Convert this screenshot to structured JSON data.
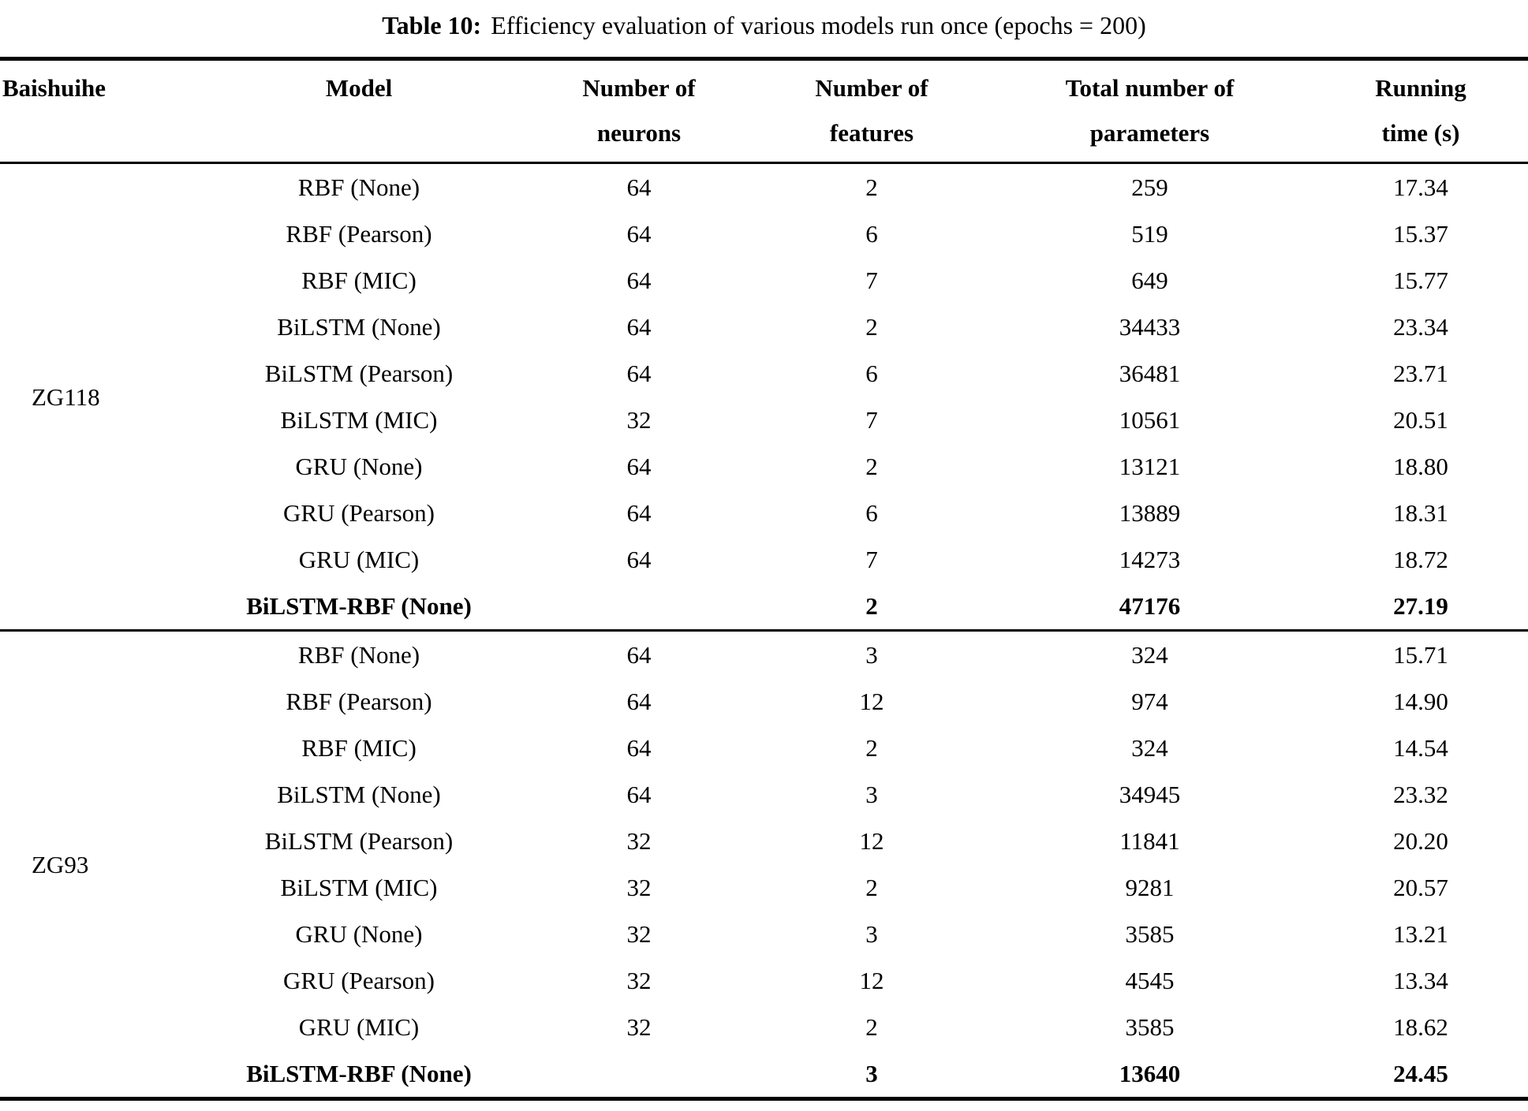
{
  "colors": {
    "text": "#000000",
    "background": "#ffffff"
  },
  "caption": {
    "label": "Table 10:",
    "text": "Efficiency evaluation of various models run once (epochs = 200)"
  },
  "table": {
    "headers": [
      {
        "lines": [
          "Baishuihe"
        ]
      },
      {
        "lines": [
          "Model"
        ]
      },
      {
        "lines": [
          "Number of",
          "neurons"
        ]
      },
      {
        "lines": [
          "Number of",
          "features"
        ]
      },
      {
        "lines": [
          "Total number of",
          "parameters"
        ]
      },
      {
        "lines": [
          "Running",
          "time (s)"
        ]
      }
    ],
    "groups": [
      {
        "label": "ZG118",
        "rows": [
          {
            "model": "RBF (None)",
            "neurons": "64",
            "features": "2",
            "parameters": "259",
            "time": "17.34",
            "bold": false
          },
          {
            "model": "RBF (Pearson)",
            "neurons": "64",
            "features": "6",
            "parameters": "519",
            "time": "15.37",
            "bold": false
          },
          {
            "model": "RBF (MIC)",
            "neurons": "64",
            "features": "7",
            "parameters": "649",
            "time": "15.77",
            "bold": false
          },
          {
            "model": "BiLSTM (None)",
            "neurons": "64",
            "features": "2",
            "parameters": "34433",
            "time": "23.34",
            "bold": false
          },
          {
            "model": "BiLSTM (Pearson)",
            "neurons": "64",
            "features": "6",
            "parameters": "36481",
            "time": "23.71",
            "bold": false
          },
          {
            "model": "BiLSTM (MIC)",
            "neurons": "32",
            "features": "7",
            "parameters": "10561",
            "time": "20.51",
            "bold": false
          },
          {
            "model": "GRU (None)",
            "neurons": "64",
            "features": "2",
            "parameters": "13121",
            "time": "18.80",
            "bold": false
          },
          {
            "model": "GRU (Pearson)",
            "neurons": "64",
            "features": "6",
            "parameters": "13889",
            "time": "18.31",
            "bold": false
          },
          {
            "model": "GRU (MIC)",
            "neurons": "64",
            "features": "7",
            "parameters": "14273",
            "time": "18.72",
            "bold": false
          },
          {
            "model": "BiLSTM-RBF (None)",
            "neurons": "",
            "features": "2",
            "parameters": "47176",
            "time": "27.19",
            "bold": true
          }
        ]
      },
      {
        "label": "ZG93",
        "rows": [
          {
            "model": "RBF (None)",
            "neurons": "64",
            "features": "3",
            "parameters": "324",
            "time": "15.71",
            "bold": false
          },
          {
            "model": "RBF (Pearson)",
            "neurons": "64",
            "features": "12",
            "parameters": "974",
            "time": "14.90",
            "bold": false
          },
          {
            "model": "RBF (MIC)",
            "neurons": "64",
            "features": "2",
            "parameters": "324",
            "time": "14.54",
            "bold": false
          },
          {
            "model": "BiLSTM (None)",
            "neurons": "64",
            "features": "3",
            "parameters": "34945",
            "time": "23.32",
            "bold": false
          },
          {
            "model": "BiLSTM (Pearson)",
            "neurons": "32",
            "features": "12",
            "parameters": "11841",
            "time": "20.20",
            "bold": false
          },
          {
            "model": "BiLSTM (MIC)",
            "neurons": "32",
            "features": "2",
            "parameters": "9281",
            "time": "20.57",
            "bold": false
          },
          {
            "model": "GRU (None)",
            "neurons": "32",
            "features": "3",
            "parameters": "3585",
            "time": "13.21",
            "bold": false
          },
          {
            "model": "GRU (Pearson)",
            "neurons": "32",
            "features": "12",
            "parameters": "4545",
            "time": "13.34",
            "bold": false
          },
          {
            "model": "GRU (MIC)",
            "neurons": "32",
            "features": "2",
            "parameters": "3585",
            "time": "18.62",
            "bold": false
          },
          {
            "model": "BiLSTM-RBF (None)",
            "neurons": "",
            "features": "3",
            "parameters": "13640",
            "time": "24.45",
            "bold": true
          }
        ]
      }
    ]
  }
}
